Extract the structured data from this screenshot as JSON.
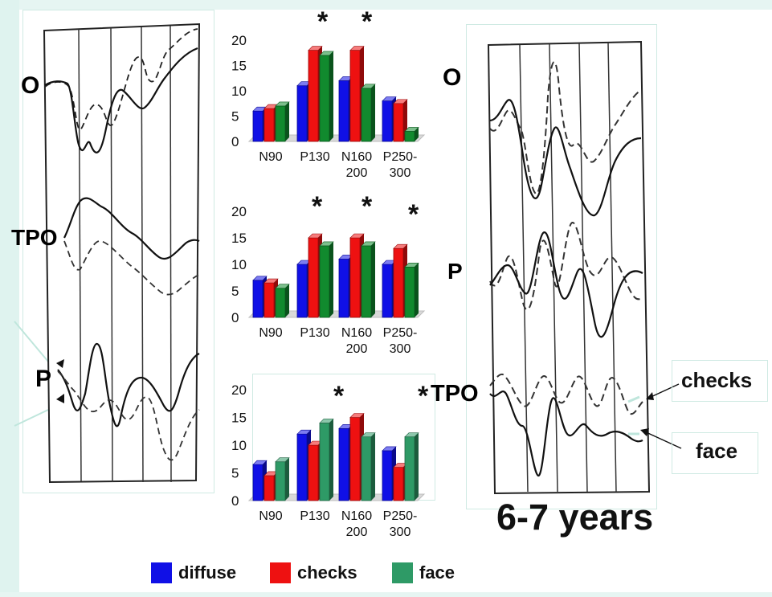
{
  "title": "6-7 years",
  "colors": {
    "diffuse": "#1010e6",
    "checks": "#ee1111",
    "face": "#118a2e",
    "face_light": "#2e9a66"
  },
  "legend": [
    {
      "label": "diffuse",
      "color": "#1010e6"
    },
    {
      "label": "checks",
      "color": "#ee1111"
    },
    {
      "label": "face",
      "color": "#2e9a66"
    }
  ],
  "left_traces": {
    "leads": [
      "O",
      "TPO",
      "P"
    ]
  },
  "right_traces": {
    "leads": [
      "O",
      "P",
      "TPO"
    ],
    "annotations": [
      "checks",
      "face"
    ]
  },
  "chart_data": [
    {
      "type": "bar",
      "categories": [
        "N90",
        "P130",
        "N160-200",
        "P250-300"
      ],
      "yticks": [
        0,
        5,
        10,
        15,
        20
      ],
      "ylim": [
        0,
        20
      ],
      "series": [
        {
          "name": "diffuse",
          "values": [
            6,
            11,
            12,
            8
          ]
        },
        {
          "name": "checks",
          "values": [
            6.5,
            18,
            18,
            7.5
          ]
        },
        {
          "name": "face",
          "values": [
            7,
            17,
            10.5,
            2
          ]
        }
      ],
      "annotations": [
        "*",
        "*"
      ]
    },
    {
      "type": "bar",
      "categories": [
        "N90",
        "P130",
        "N160-200",
        "P250-300"
      ],
      "yticks": [
        0,
        5,
        10,
        15,
        20
      ],
      "ylim": [
        0,
        20
      ],
      "series": [
        {
          "name": "diffuse",
          "values": [
            7,
            10,
            11,
            10
          ]
        },
        {
          "name": "checks",
          "values": [
            6.5,
            15,
            15,
            13
          ]
        },
        {
          "name": "face",
          "values": [
            5.5,
            13.5,
            13.5,
            9.5
          ]
        }
      ],
      "annotations": [
        "*",
        "*",
        "*"
      ]
    },
    {
      "type": "bar",
      "categories": [
        "N90",
        "P130",
        "N160-200",
        "P250-300"
      ],
      "yticks": [
        0,
        5,
        10,
        15,
        20
      ],
      "ylim": [
        0,
        20
      ],
      "series": [
        {
          "name": "diffuse",
          "values": [
            6.5,
            12,
            13,
            9
          ]
        },
        {
          "name": "checks",
          "values": [
            4.5,
            10,
            15,
            6
          ]
        },
        {
          "name": "face",
          "values": [
            7,
            14,
            11.5,
            11.5
          ]
        }
      ],
      "annotations": [
        "*",
        "*"
      ]
    }
  ]
}
